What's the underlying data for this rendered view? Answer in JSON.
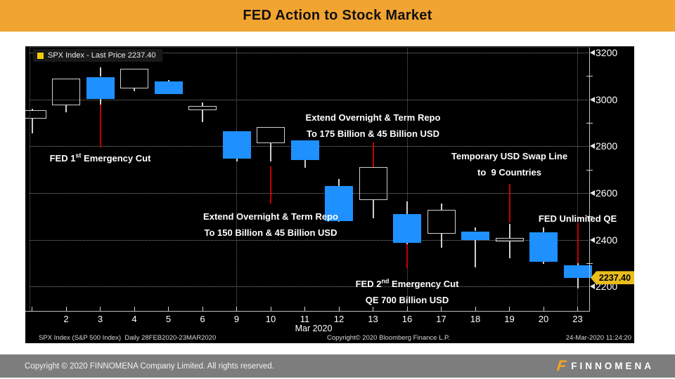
{
  "header": {
    "title": "FED Action to Stock Market"
  },
  "legend": {
    "label": "SPX Index - Last Price 2237.40"
  },
  "chart_footer": {
    "left": "SPX Index (S&P 500 Index)  Daily 28FEB2020-23MAR2020",
    "center": "Copyright© 2020 Bloomberg Finance L.P.",
    "right": "24-Mar-2020 11:24:20"
  },
  "footer": {
    "copyright": "Copyright © 2020 FINNOMENA Company Limited. All rights reserved.",
    "brand": "FINNOMENA"
  },
  "colors": {
    "header_bg": "#F2A431",
    "header_text": "#111111",
    "chart_bg": "#000000",
    "candle_down": "#1E90FF",
    "event_line": "#C00000",
    "axis": "#C0C0C0",
    "tag_bg": "#E9BE1C",
    "legend_swatch": "#F2CB05",
    "footer_bg": "#7D7D7D",
    "footer_text": "#F2F2F2",
    "brand_orange": "#F5A623"
  },
  "chart_data": {
    "type": "candlestick",
    "instrument": "SPX Index",
    "period_label": "Daily 28FEB2020-23MAR2020",
    "x_axis_title": "Mar 2020",
    "y_ticks": [
      3200,
      3000,
      2800,
      2600,
      2400,
      2200
    ],
    "y_minor_ticks": [
      3100,
      2900,
      2700,
      2500,
      2300
    ],
    "ylim": [
      2100,
      3220
    ],
    "grid": "dotted",
    "week_start_cols": [
      6,
      11,
      16
    ],
    "last_price": 2237.4,
    "last_price_label": "2237.40",
    "series": [
      {
        "label": "",
        "open": 2916.9,
        "high": 2959.72,
        "low": 2855.84,
        "close": 2954.22
      },
      {
        "label": "2",
        "open": 2974.28,
        "high": 3090.96,
        "low": 2945.19,
        "close": 3090.23
      },
      {
        "label": "3",
        "open": 3096.46,
        "high": 3136.72,
        "low": 2976.63,
        "close": 3003.37
      },
      {
        "label": "4",
        "open": 3045.75,
        "high": 3130.97,
        "low": 3034.38,
        "close": 3130.12
      },
      {
        "label": "5",
        "open": 3075.7,
        "high": 3083.04,
        "low": 3024.39,
        "close": 3023.94
      },
      {
        "label": "6",
        "open": 2954.2,
        "high": 2985.93,
        "low": 2901.54,
        "close": 2972.37
      },
      {
        "label": "9",
        "open": 2863.89,
        "high": 2863.89,
        "low": 2734.43,
        "close": 2746.56
      },
      {
        "label": "10",
        "open": 2813.48,
        "high": 2882.59,
        "low": 2734.0,
        "close": 2882.23
      },
      {
        "label": "11",
        "open": 2825.6,
        "high": 2825.6,
        "low": 2707.22,
        "close": 2741.38
      },
      {
        "label": "12",
        "open": 2630.86,
        "high": 2660.95,
        "low": 2478.86,
        "close": 2480.64
      },
      {
        "label": "13",
        "open": 2569.99,
        "high": 2711.33,
        "low": 2492.37,
        "close": 2711.02
      },
      {
        "label": "16",
        "open": 2508.59,
        "high": 2562.98,
        "low": 2380.94,
        "close": 2386.13
      },
      {
        "label": "17",
        "open": 2425.66,
        "high": 2553.93,
        "low": 2367.04,
        "close": 2529.19
      },
      {
        "label": "18",
        "open": 2436.5,
        "high": 2453.57,
        "low": 2280.52,
        "close": 2398.1
      },
      {
        "label": "19",
        "open": 2393.48,
        "high": 2466.97,
        "low": 2319.78,
        "close": 2409.39
      },
      {
        "label": "20",
        "open": 2431.94,
        "high": 2453.01,
        "low": 2295.56,
        "close": 2304.92
      },
      {
        "label": "23",
        "open": 2290.71,
        "high": 2300.73,
        "low": 2191.86,
        "close": 2237.4
      }
    ],
    "event_lines": [
      {
        "col": 2,
        "from_price": 2990,
        "to_price": 2795
      },
      {
        "col": 7,
        "from_price": 2714,
        "to_price": 2555
      },
      {
        "col": 10,
        "from_price": 2816,
        "to_price": 2711
      },
      {
        "col": 11,
        "from_price": 2384,
        "to_price": 2279
      },
      {
        "col": 14,
        "from_price": 2639,
        "to_price": 2474
      },
      {
        "col": 16,
        "from_price": 2471,
        "to_price": 2291
      }
    ],
    "annotations": [
      {
        "id": "fed-1st-emergency-cut",
        "col": 2,
        "anchor_price": 2750,
        "lines": [
          {
            "pre": "FED 1",
            "sup": "st",
            "post": " Emergency Cut"
          }
        ]
      },
      {
        "id": "repo-175-billion",
        "col": 10,
        "anchor_price": 2924,
        "lines": [
          {
            "pre": "Extend Overnight & Term Repo"
          },
          {
            "pre": "To 175 Billion & 45 Billion USD"
          }
        ]
      },
      {
        "id": "usd-swap-line",
        "col": 14,
        "anchor_price": 2759,
        "lines": [
          {
            "pre": "Temporary USD Swap Line"
          },
          {
            "pre": "to  9 Countries"
          }
        ]
      },
      {
        "id": "repo-150-billion",
        "col": 7,
        "anchor_price": 2501,
        "lines": [
          {
            "pre": "Extend Overnight & Term Repo"
          },
          {
            "pre": "To 150 Billion & 45 Billion USD"
          }
        ]
      },
      {
        "id": "fed-unlimited-qe",
        "col": 16,
        "anchor_price": 2492,
        "lines": [
          {
            "pre": "FED Unlimited QE"
          }
        ]
      },
      {
        "id": "fed-2nd-emergency-cut",
        "col": 11,
        "anchor_price": 2213,
        "lines": [
          {
            "pre": "FED 2",
            "sup": "nd",
            "post": " Emergency Cut"
          },
          {
            "pre": "QE 700 Billion USD"
          }
        ]
      }
    ]
  }
}
